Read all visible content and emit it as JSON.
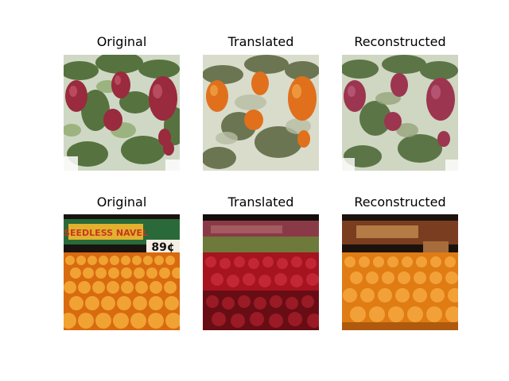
{
  "figure": {
    "rows": [
      {
        "panels": [
          {
            "title": "Original",
            "subject": "red-apples-on-tree"
          },
          {
            "title": "Translated",
            "subject": "orange-fruit-on-tree"
          },
          {
            "title": "Reconstructed",
            "subject": "red-apples-on-tree"
          }
        ]
      },
      {
        "panels": [
          {
            "title": "Original",
            "subject": "orange-market-display",
            "price_sign": "89¢",
            "banner_text": "SEEDLESS NAVEL"
          },
          {
            "title": "Translated",
            "subject": "red-apple-market-display"
          },
          {
            "title": "Reconstructed",
            "subject": "orange-market-display"
          }
        ]
      }
    ]
  },
  "colors": {
    "apple_red": "#9a2a3e",
    "orange": "#e88a1a",
    "leaf_green": "#4f6a3a",
    "sky": "#dfe6d8"
  }
}
